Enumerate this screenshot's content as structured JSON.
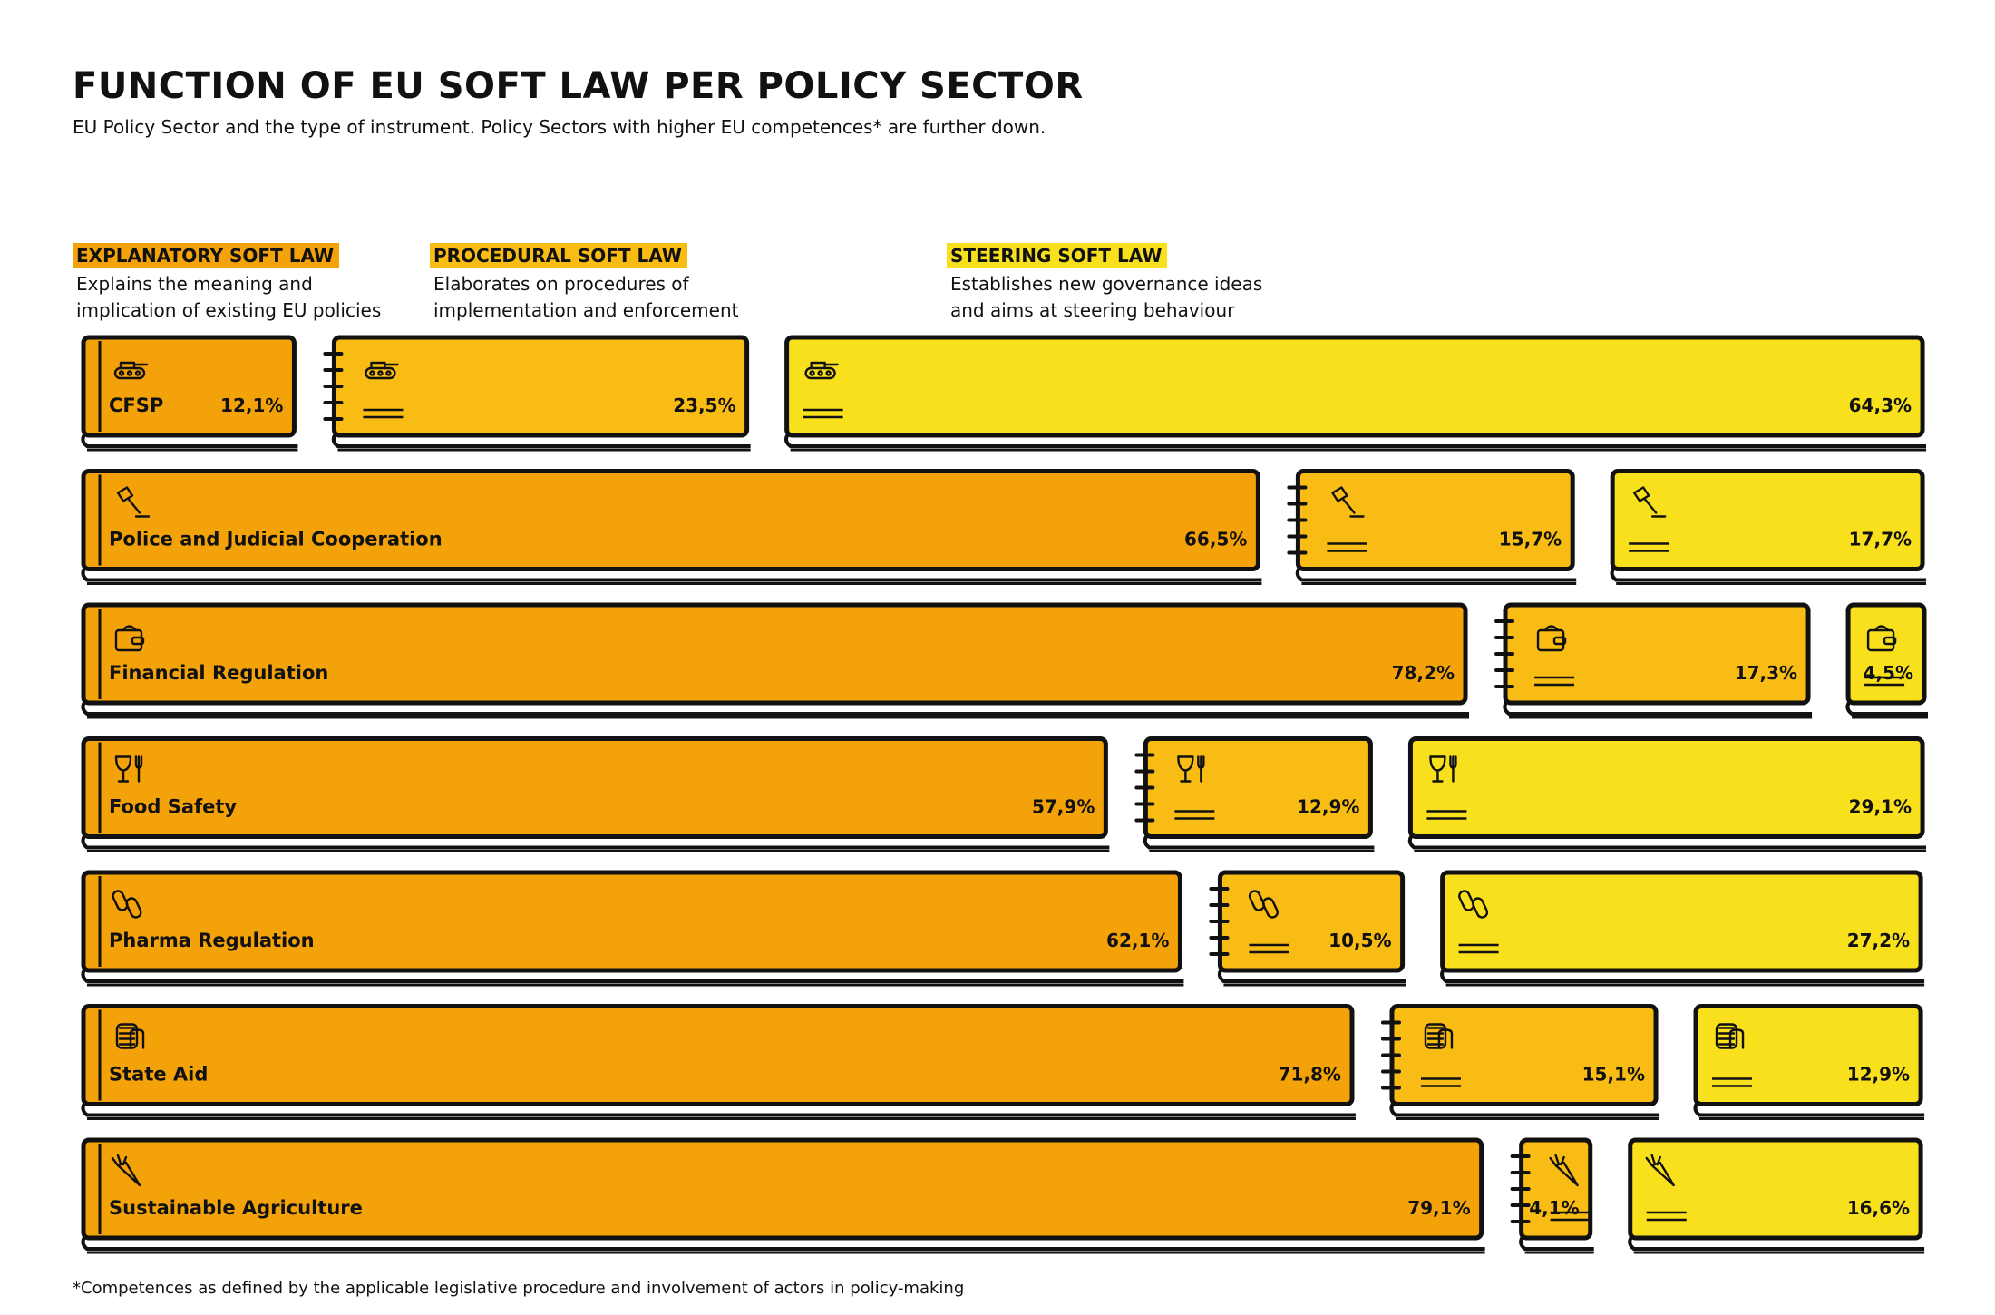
{
  "title": "FUNCTION OF EU SOFT LAW PER POLICY SECTOR",
  "subtitle": "EU Policy Sector and the type of instrument. Policy Sectors with higher EU competences* are further down.",
  "footnote": "*Competences as defined by the applicable legislative procedure and involvement of actors in policy-making",
  "categories": [
    {
      "key": "explanatory",
      "label": "EXPLANATORY SOFT LAW",
      "desc1": "Explains the meaning and",
      "desc2": "implication of existing EU policies",
      "color": "#f4a20a"
    },
    {
      "key": "procedural",
      "label": "PROCEDURAL SOFT LAW",
      "desc1": "Elaborates on procedures of",
      "desc2": "implementation and enforcement",
      "color": "#f9bc14"
    },
    {
      "key": "steering",
      "label": "STEERING SOFT LAW",
      "desc1": "Establishes new governance ideas",
      "desc2": "and aims at steering behaviour",
      "color": "#f8e11c"
    }
  ],
  "chart_data": {
    "type": "bar",
    "orientation": "horizontal-stacked-100",
    "categories": [
      "CFSP",
      "Police and Judicial Cooperation",
      "Financial Regulation",
      "Food Safety",
      "Pharma Regulation",
      "State Aid",
      "Sustainable Agriculture"
    ],
    "icons": [
      "tank-icon",
      "gavel-icon",
      "wallet-icon",
      "food-icon",
      "pills-icon",
      "coins-icon",
      "carrot-icon"
    ],
    "series": [
      {
        "name": "EXPLANATORY SOFT LAW",
        "values": [
          12.1,
          66.5,
          78.2,
          57.9,
          62.1,
          71.8,
          79.1
        ],
        "labels": [
          "12,1%",
          "66,5%",
          "78,2%",
          "57,9%",
          "62,1%",
          "71,8%",
          "79,1%"
        ]
      },
      {
        "name": "PROCEDURAL SOFT LAW",
        "values": [
          23.5,
          15.7,
          17.3,
          12.9,
          10.5,
          15.1,
          4.1
        ],
        "labels": [
          "23,5%",
          "15,7%",
          "17,3%",
          "12,9%",
          "10,5%",
          "15,1%",
          "4,1%"
        ]
      },
      {
        "name": "STEERING SOFT LAW",
        "values": [
          64.3,
          17.7,
          4.5,
          29.1,
          27.2,
          12.9,
          16.6
        ],
        "labels": [
          "64,3%",
          "17,7%",
          "4,5%",
          "29,1%",
          "27,2%",
          "12,9%",
          "16,6%"
        ]
      }
    ],
    "xlim": [
      0,
      100
    ],
    "unit": "%"
  }
}
